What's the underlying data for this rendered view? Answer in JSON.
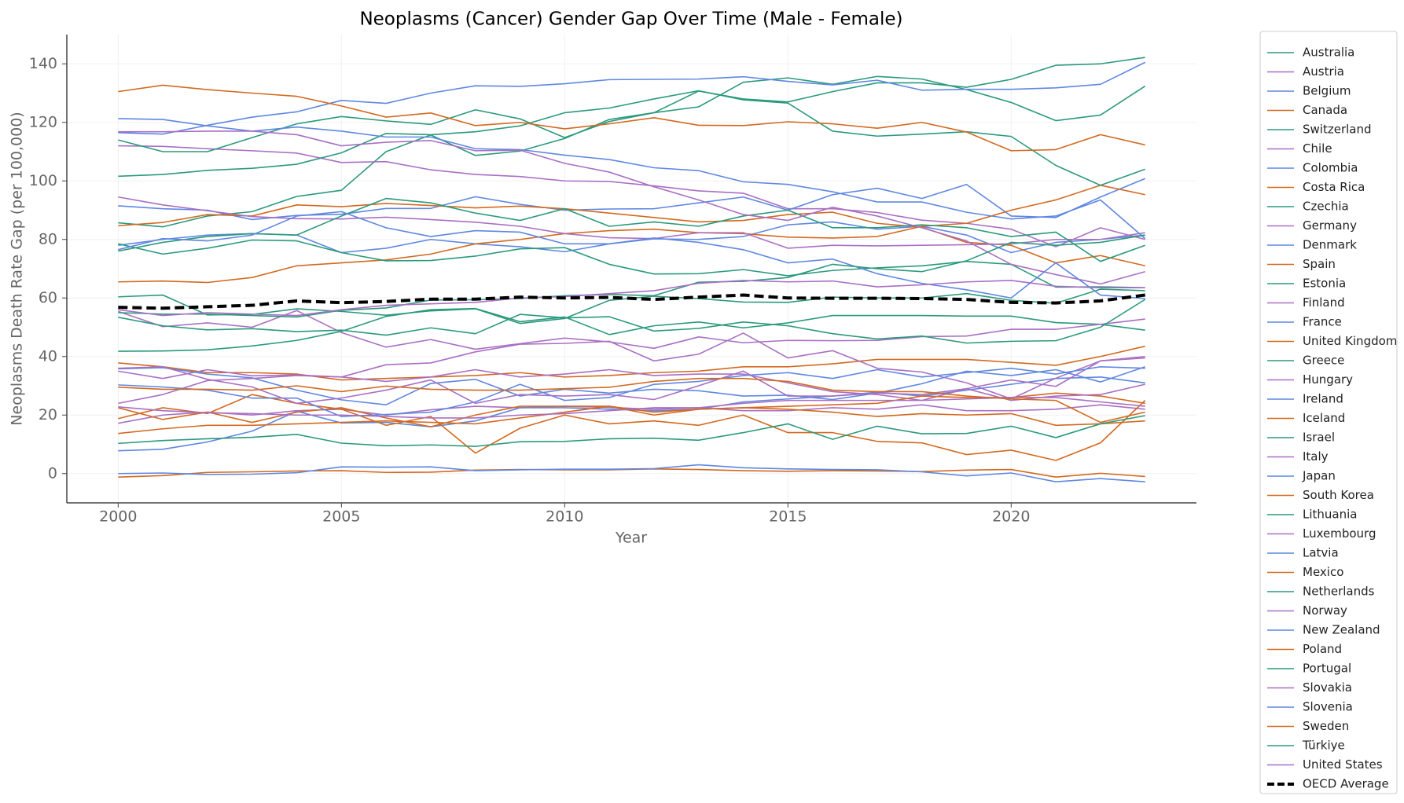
{
  "chart_data": {
    "type": "line",
    "title": "Neoplasms (Cancer) Gender Gap Over Time (Male - Female)",
    "xlabel": "Year",
    "ylabel": "Neoplasms Death Rate Gap (per 100,000)",
    "x": [
      2000,
      2001,
      2002,
      2003,
      2004,
      2005,
      2006,
      2007,
      2008,
      2009,
      2010,
      2011,
      2012,
      2013,
      2014,
      2015,
      2016,
      2017,
      2018,
      2019,
      2020,
      2021,
      2022,
      2023
    ],
    "xlim": [
      1998.85,
      2024.15
    ],
    "xticks": [
      2000,
      2005,
      2010,
      2015,
      2020
    ],
    "ylim": [
      -10,
      150
    ],
    "yticks": [
      0,
      20,
      40,
      60,
      80,
      100,
      120,
      140
    ],
    "grid": true,
    "legend": "outside right",
    "series": [
      {
        "name": "Australia",
        "color": "#2a9a7c",
        "values": [
          41.8,
          41.9,
          42.3,
          43.6,
          45.5,
          48.6,
          53.7,
          56.0,
          56.4,
          51.9,
          53.5,
          47.5,
          50.5,
          51.8,
          49.8,
          51.5,
          54.0,
          54.0,
          54.0,
          53.8,
          53.8,
          51.6,
          51.0,
          49.0
        ]
      },
      {
        "name": "Austria",
        "color": "#a96fc3",
        "values": [
          55.4,
          50.2,
          51.5,
          50.0,
          55.7,
          48.2,
          43.2,
          45.8,
          42.5,
          44.4,
          46.3,
          45.0,
          42.8,
          46.7,
          44.7,
          45.5,
          45.4,
          45.5,
          46.8,
          47.0,
          49.3,
          49.3,
          51.0,
          52.8
        ]
      },
      {
        "name": "Belgium",
        "color": "#5f87e2",
        "values": [
          78.0,
          80.0,
          81.5,
          82.0,
          81.5,
          75.5,
          77.0,
          80.0,
          78.5,
          77.5,
          75.8,
          78.5,
          80.2,
          80.0,
          81.0,
          85.0,
          86.0,
          83.5,
          84.5,
          81.5,
          75.5,
          79.0,
          80.0,
          81.5
        ]
      },
      {
        "name": "Canada",
        "color": "#d4691f",
        "values": [
          37.8,
          36.5,
          34.5,
          34.5,
          34.0,
          32.0,
          32.5,
          33.0,
          33.5,
          34.5,
          33.0,
          33.5,
          34.5,
          35.0,
          36.5,
          36.5,
          37.5,
          39.0,
          39.0,
          39.0,
          38.0,
          37.0,
          40.0,
          43.5
        ]
      },
      {
        "name": "Switzerland",
        "color": "#2a9a7c",
        "values": [
          53.4,
          50.5,
          49.1,
          49.5,
          48.5,
          49.0,
          47.3,
          49.8,
          47.8,
          54.4,
          53.2,
          53.6,
          48.7,
          49.6,
          51.8,
          50.5,
          47.8,
          46.0,
          47.0,
          44.6,
          45.2,
          45.4,
          50.0,
          59.5
        ]
      },
      {
        "name": "Chile",
        "color": "#a96fc3",
        "values": [
          17.2,
          20.0,
          21.0,
          20.0,
          21.5,
          22.0,
          20.0,
          21.8,
          23.0,
          22.5,
          23.0,
          22.6,
          22.0,
          22.5,
          21.5,
          21.5,
          22.5,
          22.0,
          23.5,
          21.5,
          21.5,
          22.0,
          23.5,
          22.0
        ]
      },
      {
        "name": "Colombia",
        "color": "#5f87e2",
        "values": [
          7.8,
          8.3,
          10.8,
          14.5,
          21.3,
          17.3,
          17.5,
          16.0,
          18.0,
          22.5,
          22.5,
          22.0,
          21.5,
          22.0,
          24.5,
          25.5,
          26.5,
          27.8,
          26.5,
          28.5,
          30.5,
          32.5,
          33.0,
          31.0
        ]
      },
      {
        "name": "Costa Rica",
        "color": "#d4691f",
        "values": [
          18.8,
          22.5,
          20.5,
          27.0,
          24.0,
          22.0,
          16.5,
          19.5,
          7.0,
          15.5,
          20.0,
          17.0,
          18.0,
          16.5,
          20.0,
          14.0,
          14.0,
          11.0,
          10.5,
          6.5,
          8.0,
          4.5,
          10.5,
          25.0
        ]
      },
      {
        "name": "Czechia",
        "color": "#2a9a7c",
        "values": [
          85.7,
          84.3,
          88.0,
          89.5,
          94.7,
          96.8,
          110.0,
          115.7,
          108.7,
          110.2,
          114.5,
          121.0,
          123.3,
          125.3,
          133.7,
          135.2,
          133.0,
          135.7,
          134.8,
          131.2,
          126.8,
          120.6,
          122.5,
          132.4
        ]
      },
      {
        "name": "Germany",
        "color": "#a96fc3",
        "values": [
          112.0,
          111.8,
          111.0,
          110.3,
          109.5,
          106.3,
          106.6,
          103.8,
          102.2,
          101.5,
          100.0,
          99.8,
          98.3,
          96.6,
          95.8,
          90.5,
          90.5,
          89.2,
          86.6,
          85.5,
          83.5,
          77.5,
          84.0,
          80.0
        ]
      },
      {
        "name": "Denmark",
        "color": "#5f87e2",
        "values": [
          91.5,
          90.5,
          90.0,
          86.8,
          88.2,
          88.6,
          90.6,
          90.6,
          94.6,
          92.0,
          90.0,
          90.4,
          90.5,
          92.5,
          94.5,
          90.0,
          95.3,
          97.5,
          94.0,
          98.8,
          88.0,
          87.5,
          94.5,
          100.8
        ]
      },
      {
        "name": "Spain",
        "color": "#d4691f",
        "values": [
          84.7,
          85.8,
          88.5,
          88.0,
          91.8,
          91.2,
          92.3,
          91.6,
          90.8,
          91.4,
          90.5,
          89.0,
          87.5,
          86.0,
          86.5,
          88.5,
          89.3,
          85.5,
          84.2,
          79.0,
          78.0,
          72.0,
          74.5,
          71.0
        ]
      },
      {
        "name": "Estonia",
        "color": "#2a9a7c",
        "values": [
          114.0,
          110.0,
          110.0,
          114.8,
          119.5,
          122.0,
          120.5,
          119.3,
          124.3,
          121.2,
          114.8,
          120.3,
          123.3,
          130.7,
          128.0,
          127.0,
          130.5,
          133.5,
          133.5,
          132.0,
          134.7,
          139.5,
          140.0,
          142.2
        ]
      },
      {
        "name": "Finland",
        "color": "#a96fc3",
        "values": [
          35.0,
          32.5,
          35.5,
          33.4,
          33.7,
          33.0,
          37.2,
          37.8,
          41.6,
          44.2,
          44.5,
          45.2,
          38.5,
          40.8,
          48.0,
          39.5,
          42.0,
          36.0,
          34.7,
          31.0,
          25.5,
          32.6,
          38.5,
          40.0
        ]
      },
      {
        "name": "France",
        "color": "#5f87e2",
        "values": [
          116.5,
          116.0,
          119.0,
          121.8,
          123.6,
          127.5,
          126.5,
          130.0,
          132.5,
          132.3,
          133.2,
          134.6,
          134.7,
          134.8,
          135.6,
          134.0,
          132.8,
          134.4,
          131.0,
          131.3,
          131.3,
          131.8,
          133.0,
          140.5
        ]
      },
      {
        "name": "United Kingdom",
        "color": "#d4691f",
        "values": [
          65.5,
          65.8,
          65.3,
          67.0,
          71.0,
          72.0,
          73.0,
          75.0,
          78.5,
          80.0,
          82.0,
          83.0,
          83.5,
          82.3,
          82.0,
          80.8,
          80.5,
          81.0,
          84.5,
          85.5,
          90.0,
          93.5,
          98.5,
          95.3
        ]
      },
      {
        "name": "Greece",
        "color": "#2a9a7c",
        "values": [
          101.6,
          102.2,
          103.6,
          104.3,
          105.7,
          109.6,
          116.2,
          115.8,
          116.8,
          118.8,
          123.3,
          124.9,
          128.0,
          130.8,
          127.7,
          126.6,
          117.0,
          115.3,
          116.0,
          116.8,
          115.2,
          105.3,
          98.5,
          104.0
        ]
      },
      {
        "name": "Hungary",
        "color": "#a96fc3",
        "values": [
          94.5,
          91.8,
          89.8,
          87.8,
          87.1,
          87.0,
          87.6,
          86.8,
          85.9,
          84.5,
          82.0,
          80.6,
          80.3,
          82.3,
          82.3,
          77.0,
          78.0,
          77.8,
          78.0,
          78.2,
          78.5,
          80.0,
          80.0,
          82.3
        ]
      },
      {
        "name": "Ireland",
        "color": "#5f87e2",
        "values": [
          35.8,
          36.2,
          34.0,
          32.7,
          28.5,
          25.2,
          23.5,
          30.8,
          32.2,
          26.5,
          28.8,
          27.5,
          28.8,
          28.3,
          26.5,
          26.8,
          25.3,
          27.5,
          30.7,
          35.0,
          33.5,
          35.5,
          31.3,
          36.5
        ]
      },
      {
        "name": "Iceland",
        "color": "#d4691f",
        "values": [
          22.5,
          18.5,
          21.0,
          17.5,
          21.0,
          22.5,
          19.0,
          16.0,
          20.0,
          23.0,
          23.0,
          23.0,
          20.0,
          22.0,
          22.5,
          22.0,
          21.0,
          19.5,
          20.5,
          20.0,
          20.5,
          16.5,
          17.0,
          18.0
        ]
      },
      {
        "name": "Israel",
        "color": "#2a9a7c",
        "values": [
          10.3,
          11.3,
          11.9,
          12.4,
          13.4,
          10.4,
          9.5,
          9.8,
          9.3,
          10.9,
          11.0,
          11.9,
          12.1,
          11.4,
          14.0,
          17.0,
          11.7,
          16.2,
          13.6,
          13.7,
          16.2,
          12.3,
          17.0,
          19.8
        ]
      },
      {
        "name": "Italy",
        "color": "#a96fc3",
        "values": [
          24.0,
          27.0,
          31.8,
          32.5,
          33.5,
          33.0,
          31.5,
          33.0,
          35.5,
          33.0,
          34.0,
          35.5,
          33.5,
          34.0,
          34.0,
          31.0,
          28.0,
          27.0,
          25.0,
          29.0,
          32.0,
          29.8,
          38.5,
          39.5
        ]
      },
      {
        "name": "Japan",
        "color": "#5f87e2",
        "values": [
          30.3,
          29.6,
          28.5,
          25.8,
          25.8,
          19.5,
          20.2,
          21.0,
          24.5,
          30.5,
          25.0,
          26.0,
          30.5,
          31.5,
          33.5,
          34.5,
          32.5,
          35.5,
          33.0,
          34.5,
          36.0,
          34.0,
          36.5,
          36.0
        ]
      },
      {
        "name": "South Korea",
        "color": "#d4691f",
        "values": [
          13.7,
          15.3,
          16.5,
          16.5,
          17.0,
          17.5,
          18.0,
          17.5,
          17.0,
          19.0,
          21.0,
          23.0,
          21.0,
          22.0,
          22.5,
          23.0,
          23.5,
          24.0,
          26.5,
          26.0,
          26.0,
          27.5,
          26.5,
          24.0
        ]
      },
      {
        "name": "Lithuania",
        "color": "#2a9a7c",
        "values": [
          76.0,
          79.0,
          81.0,
          82.0,
          81.5,
          88.0,
          94.0,
          92.5,
          89.0,
          86.5,
          90.5,
          84.5,
          86.0,
          84.5,
          88.0,
          90.0,
          84.0,
          84.0,
          85.0,
          84.0,
          81.0,
          82.5,
          72.5,
          78.0
        ]
      },
      {
        "name": "Luxembourg",
        "color": "#a96fc3",
        "values": [
          36.0,
          36.5,
          32.2,
          29.6,
          24.0,
          25.8,
          28.5,
          32.0,
          24.0,
          27.0,
          26.5,
          27.0,
          25.3,
          30.0,
          35.0,
          26.5,
          26.5,
          27.5,
          27.0,
          29.0,
          25.0,
          26.5,
          27.0,
          30.5
        ]
      },
      {
        "name": "Latvia",
        "color": "#5f87e2",
        "values": [
          121.3,
          121.0,
          118.8,
          117.0,
          118.4,
          117.0,
          115.0,
          115.0,
          111.0,
          110.7,
          108.8,
          107.3,
          104.5,
          103.5,
          99.7,
          98.8,
          96.3,
          92.8,
          92.8,
          89.3,
          87.0,
          88.0,
          93.5,
          80.3
        ]
      },
      {
        "name": "Mexico",
        "color": "#d4691f",
        "values": [
          -1.2,
          -0.7,
          0.4,
          0.6,
          0.9,
          1.0,
          0.4,
          0.5,
          1.2,
          1.4,
          1.3,
          1.3,
          1.6,
          1.4,
          1.0,
          0.8,
          1.0,
          0.9,
          0.7,
          1.2,
          1.4,
          -1.2,
          0.1,
          -1.0
        ]
      },
      {
        "name": "Netherlands",
        "color": "#2a9a7c",
        "values": [
          60.4,
          61.0,
          54.2,
          54.4,
          56.3,
          55.4,
          54.1,
          55.6,
          56.3,
          51.3,
          53.0,
          59.2,
          60.6,
          59.8,
          58.6,
          58.5,
          60.3,
          60.0,
          60.0,
          61.5,
          59.2,
          58.2,
          63.0,
          62.5
        ]
      },
      {
        "name": "Norway",
        "color": "#a96fc3",
        "values": [
          22.8,
          21.5,
          20.8,
          20.5,
          20.0,
          20.0,
          19.5,
          19.0,
          19.0,
          20.0,
          20.5,
          21.5,
          22.5,
          22.5,
          24.0,
          25.0,
          25.0,
          25.0,
          25.0,
          25.5,
          26.0,
          26.0,
          24.5,
          23.0
        ]
      },
      {
        "name": "New Zealand",
        "color": "#5f87e2",
        "values": [
          0.0,
          0.2,
          -0.3,
          -0.2,
          0.3,
          2.3,
          2.2,
          2.3,
          1.0,
          1.3,
          1.5,
          1.5,
          1.7,
          3.0,
          2.0,
          1.6,
          1.4,
          1.3,
          0.6,
          -0.8,
          0.2,
          -2.8,
          -1.7,
          -2.8
        ]
      },
      {
        "name": "Poland",
        "color": "#d4691f",
        "values": [
          130.5,
          132.7,
          131.2,
          130.0,
          128.9,
          125.6,
          121.8,
          123.2,
          118.9,
          120.0,
          117.8,
          119.5,
          121.6,
          119.0,
          118.9,
          120.2,
          119.5,
          118.0,
          120.0,
          116.7,
          110.3,
          110.7,
          115.8,
          112.3
        ]
      },
      {
        "name": "Portugal",
        "color": "#2a9a7c",
        "values": [
          78.5,
          75.0,
          77.0,
          79.8,
          79.5,
          75.5,
          72.7,
          72.8,
          74.3,
          76.8,
          77.2,
          71.5,
          68.2,
          68.3,
          69.7,
          67.6,
          69.4,
          70.3,
          71.0,
          72.5,
          71.5,
          63.7,
          63.8,
          63.5
        ]
      },
      {
        "name": "Slovakia",
        "color": "#a96fc3",
        "values": [
          116.8,
          116.8,
          117.0,
          117.0,
          115.8,
          112.0,
          113.2,
          113.8,
          110.3,
          110.5,
          106.0,
          103.0,
          98.0,
          93.5,
          88.5,
          86.5,
          91.0,
          88.0,
          84.0,
          79.5,
          71.5,
          68.0,
          64.8,
          69.0
        ]
      },
      {
        "name": "Slovenia",
        "color": "#5f87e2",
        "values": [
          76.5,
          80.3,
          79.5,
          81.5,
          88.0,
          89.5,
          84.0,
          81.0,
          83.0,
          82.5,
          78.5,
          78.5,
          80.5,
          79.0,
          76.5,
          72.0,
          73.3,
          68.3,
          65.0,
          62.8,
          60.0,
          72.0,
          61.0,
          59.8
        ]
      },
      {
        "name": "Sweden",
        "color": "#d4691f",
        "values": [
          29.5,
          28.8,
          28.8,
          28.5,
          30.0,
          28.0,
          29.9,
          28.8,
          28.5,
          28.5,
          29.0,
          29.5,
          31.5,
          32.5,
          32.5,
          31.5,
          28.5,
          28.0,
          28.0,
          26.5,
          25.5,
          25.0,
          17.5,
          21.0
        ]
      },
      {
        "name": "Türkiye",
        "color": "#2a9a7c",
        "values": [
          55.0,
          54.5,
          54.5,
          54.0,
          53.5,
          55.8,
          56.6,
          59.3,
          59.4,
          59.8,
          60.8,
          61.2,
          60.8,
          65.4,
          65.7,
          67.0,
          71.5,
          70.0,
          69.0,
          72.7,
          79.0,
          78.0,
          79.0,
          81.5
        ]
      },
      {
        "name": "United States",
        "color": "#a96fc3",
        "values": [
          56.0,
          54.0,
          55.0,
          54.5,
          54.0,
          56.0,
          57.5,
          58.0,
          58.5,
          60.0,
          60.5,
          61.5,
          62.5,
          65.0,
          66.0,
          65.5,
          65.8,
          63.8,
          64.5,
          65.5,
          66.0,
          64.0,
          63.5,
          63.5
        ]
      },
      {
        "name": "OECD Average",
        "color": "#000000",
        "dashed": true,
        "values": [
          56.8,
          56.5,
          57.0,
          57.5,
          59.0,
          58.4,
          58.8,
          59.6,
          59.6,
          60.3,
          60.0,
          60.2,
          59.5,
          60.3,
          61.0,
          60.0,
          59.9,
          59.9,
          59.8,
          59.5,
          58.5,
          58.3,
          59.0,
          61.0
        ]
      }
    ]
  }
}
